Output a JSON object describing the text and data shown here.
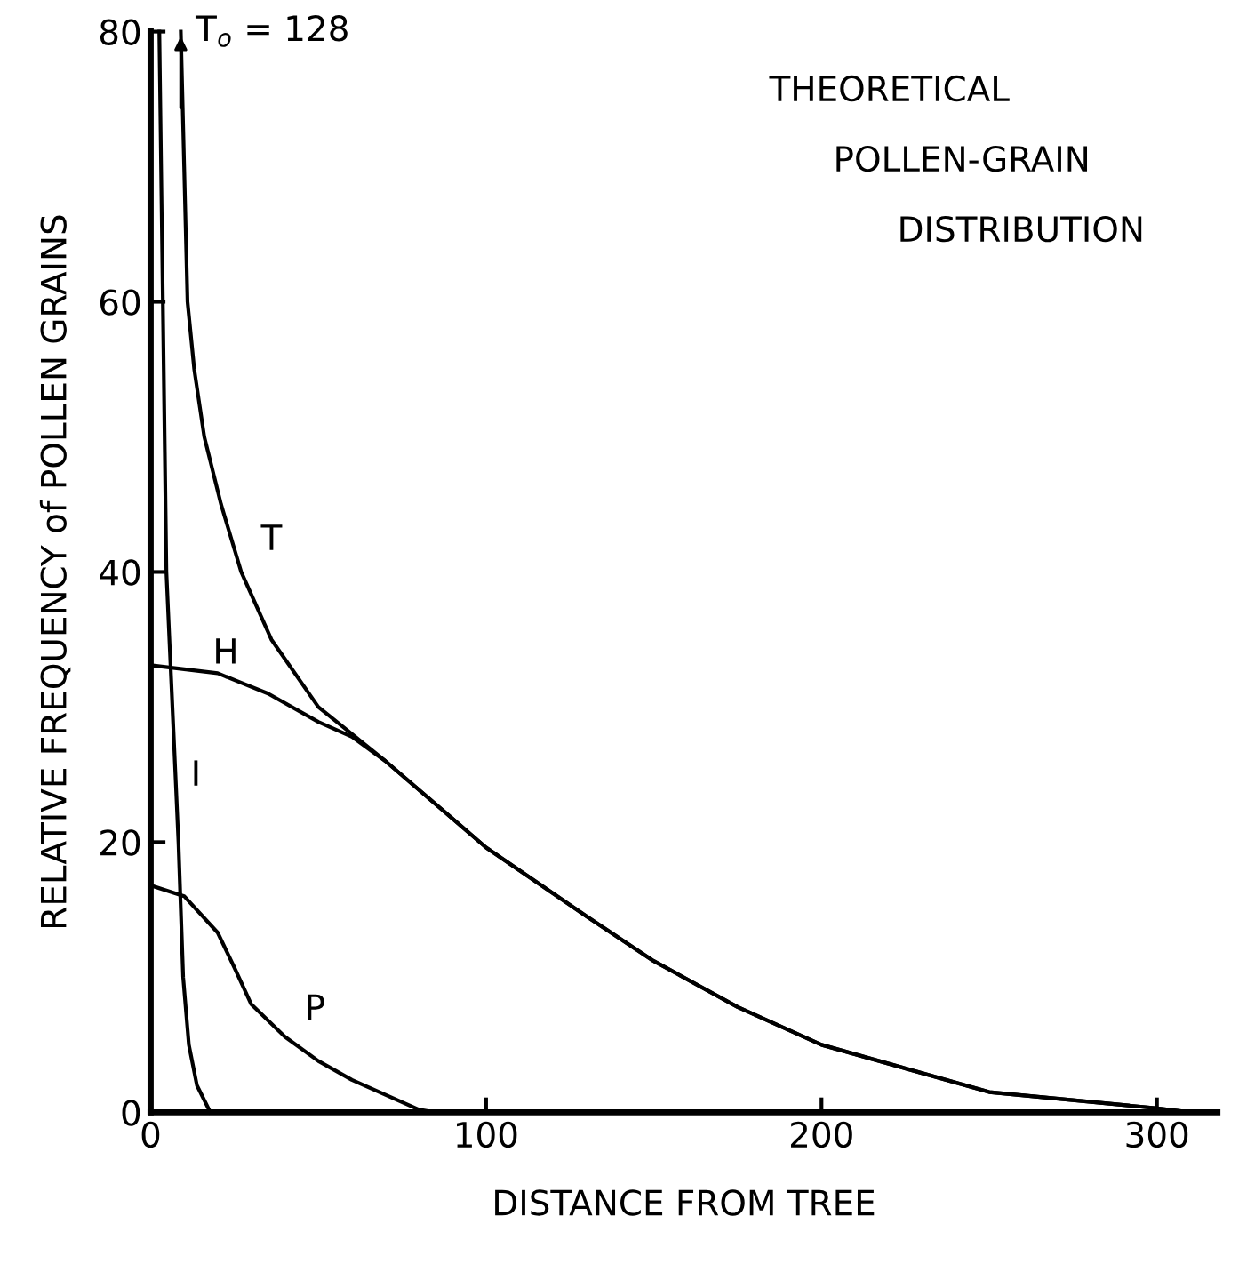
{
  "chart_data": {
    "type": "line",
    "title": "THEORETICAL\nPOLLEN-GRAIN\nDISTRIBUTION",
    "xlabel": "DISTANCE FROM TREE",
    "ylabel": "RELATIVE FREQUENCY of POLLEN GRAINS",
    "xlim": [
      0,
      318
    ],
    "ylim": [
      0,
      80
    ],
    "xticks": [
      0,
      100,
      200,
      300
    ],
    "yticks": [
      0,
      20,
      40,
      60,
      80
    ],
    "grid": false,
    "legend": false,
    "marker": "none",
    "line_style": "solid",
    "annotations": [
      {
        "text": "T$_{o}$ = 128",
        "x": 9,
        "y": 80
      }
    ],
    "series": [
      {
        "name": "T",
        "color": "#000000",
        "x": [
          9,
          10,
          11,
          13,
          16,
          21,
          27,
          36,
          50,
          70,
          100,
          130,
          150,
          175,
          200,
          250,
          300,
          310
        ],
        "values": [
          80,
          70,
          60,
          55,
          50,
          45,
          40,
          35,
          30,
          26,
          19.6,
          14.5,
          11.2,
          7.8,
          5.0,
          1.5,
          0.3,
          0
        ]
      },
      {
        "name": "H",
        "color": "#000000",
        "x": [
          0,
          20,
          35,
          50,
          60,
          70,
          100,
          130,
          150,
          175,
          200,
          250,
          300,
          310
        ],
        "values": [
          33.1,
          32.5,
          31,
          28.9,
          27.8,
          26,
          19.6,
          14.5,
          11.2,
          7.8,
          5.0,
          1.5,
          0.3,
          0
        ]
      },
      {
        "name": "I",
        "color": "#000000",
        "x": [
          2.6,
          4.7,
          8.3,
          9.7,
          11.4,
          13.8,
          17.8
        ],
        "values": [
          80,
          40,
          20,
          10,
          5,
          2,
          0
        ]
      },
      {
        "name": "P",
        "color": "#000000",
        "x": [
          0,
          10,
          20,
          25,
          30,
          40,
          50,
          60,
          70,
          80,
          85
        ],
        "values": [
          16.8,
          16,
          13.3,
          10.7,
          8,
          5.6,
          3.8,
          2.4,
          1.3,
          0.2,
          0
        ]
      }
    ]
  }
}
